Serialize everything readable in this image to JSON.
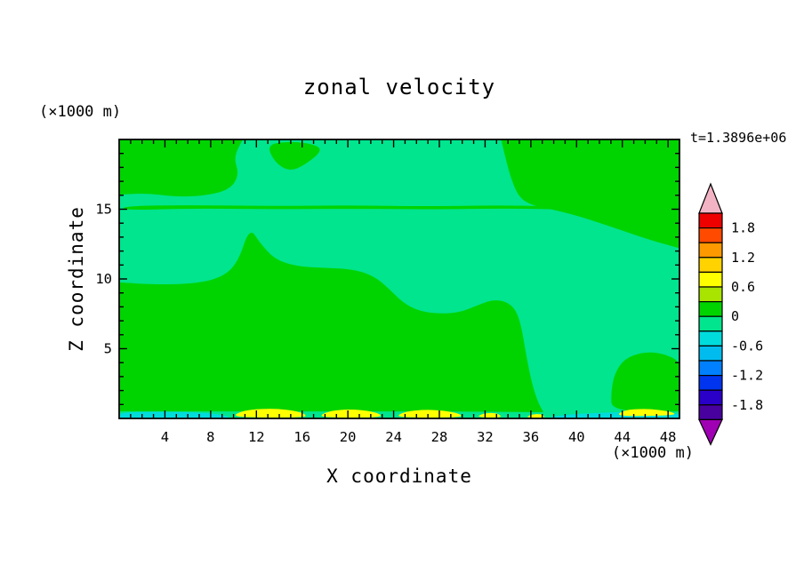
{
  "chart_data": {
    "type": "heatmap",
    "style": "filled-contour",
    "title": "zonal velocity",
    "time_label": "t=1.3896e+06",
    "x_axis_label": "X coordinate",
    "y_axis_label": "Z coordinate",
    "x_axis_unit": "(×1000 m)",
    "y_axis_unit": "(×1000 m)",
    "xlim": [
      0,
      49
    ],
    "ylim": [
      0,
      20
    ],
    "x_ticks": [
      4,
      8,
      12,
      16,
      20,
      24,
      28,
      32,
      36,
      40,
      44,
      48
    ],
    "y_ticks": [
      5,
      10,
      15
    ],
    "x_minor_tick_step": 1,
    "y_minor_tick_step": 1,
    "grid": false,
    "legend_position": "right-colorbar",
    "colorbar": {
      "tick_labels": [
        "1.8",
        "1.2",
        "0.6",
        "0",
        "-0.6",
        "-1.2",
        "-1.8"
      ],
      "tick_values": [
        1.8,
        1.2,
        0.6,
        0,
        -0.6,
        -1.2,
        -1.8
      ],
      "level_min": -2.1,
      "level_max": 2.1,
      "level_step": 0.3,
      "segment_colors_top_to_bottom": [
        "#EE0000",
        "#FF4A00",
        "#FF9900",
        "#FFD200",
        "#FFFF00",
        "#A8E400",
        "#00D400",
        "#00E58E",
        "#00DCDC",
        "#00BCEE",
        "#0080FF",
        "#0034EE",
        "#2A00C8",
        "#48009E"
      ],
      "over_arrow_color": "#F2B4C4",
      "under_arrow_color": "#A000B4"
    },
    "palette": {
      "green": "#00D400",
      "springgreen": "#00E58E",
      "yellow": "#FFFF00",
      "cyan": "#00DCDC"
    },
    "field": {
      "background": {
        "color": "springgreen",
        "value_range": [
          -0.3,
          0
        ]
      },
      "regions": [
        {
          "name": "upper-left-positive-cell",
          "color": "green",
          "value_range": [
            0,
            0.3
          ],
          "points": [
            [
              0,
              20
            ],
            [
              0,
              20
            ],
            [
              10.8,
              20
            ],
            [
              10.8,
              20
            ],
            [
              10.0,
              18.7
            ],
            [
              10.5,
              17.5
            ],
            [
              9.7,
              16.4
            ],
            [
              7.4,
              15.95
            ],
            [
              4.8,
              15.9
            ],
            [
              2.4,
              16.15
            ],
            [
              0,
              16.05
            ],
            [
              0,
              16.05
            ]
          ]
        },
        {
          "name": "upper-mid-positive-cell",
          "color": "green",
          "value_range": [
            0,
            0.3
          ],
          "points": [
            [
              12.9,
              19.6
            ],
            [
              14.6,
              19.85
            ],
            [
              16.6,
              19.75
            ],
            [
              17.9,
              19.3
            ],
            [
              16.3,
              18.2
            ],
            [
              14.9,
              17.7
            ],
            [
              13.6,
              18.35
            ]
          ]
        },
        {
          "name": "upper-right-positive-cell",
          "color": "green",
          "value_range": [
            0,
            0.3
          ],
          "points": [
            [
              33.4,
              20
            ],
            [
              33.4,
              20
            ],
            [
              49,
              20
            ],
            [
              49,
              20
            ],
            [
              49,
              12.2
            ],
            [
              49,
              12.2
            ],
            [
              46.2,
              12.85
            ],
            [
              43.2,
              13.7
            ],
            [
              40.2,
              14.5
            ],
            [
              37.8,
              15.0
            ],
            [
              36.2,
              15.25
            ],
            [
              35.0,
              15.8
            ],
            [
              34.3,
              17.1
            ],
            [
              33.8,
              18.6
            ]
          ]
        },
        {
          "name": "z15-positive-band",
          "color": "green",
          "value_range": [
            0,
            0.3
          ],
          "points": [
            [
              0.4,
              15.22
            ],
            [
              6,
              15.3
            ],
            [
              13,
              15.22
            ],
            [
              20,
              15.28
            ],
            [
              27,
              15.2
            ],
            [
              33,
              15.28
            ],
            [
              38,
              15.22
            ],
            [
              43,
              15.1
            ],
            [
              48.6,
              14.98
            ],
            [
              48.6,
              14.82
            ],
            [
              43,
              14.9
            ],
            [
              38,
              15.0
            ],
            [
              33,
              15.06
            ],
            [
              27,
              14.98
            ],
            [
              20,
              15.04
            ],
            [
              13,
              15.0
            ],
            [
              6,
              15.06
            ],
            [
              0.4,
              14.92
            ]
          ]
        },
        {
          "name": "lower-main-positive-cell",
          "color": "green",
          "value_range": [
            0,
            0.3
          ],
          "points": [
            [
              0,
              9.75
            ],
            [
              0,
              9.75
            ],
            [
              3,
              9.6
            ],
            [
              6.5,
              9.65
            ],
            [
              9,
              10.1
            ],
            [
              10.4,
              11.2
            ],
            [
              11.4,
              13.7
            ],
            [
              12.3,
              12.6
            ],
            [
              13.6,
              11.4
            ],
            [
              15.5,
              10.9
            ],
            [
              18,
              10.8
            ],
            [
              20.5,
              10.7
            ],
            [
              22.3,
              10.2
            ],
            [
              23.6,
              9.3
            ],
            [
              24.8,
              8.3
            ],
            [
              26.2,
              7.7
            ],
            [
              28,
              7.5
            ],
            [
              29.8,
              7.6
            ],
            [
              31.3,
              8.1
            ],
            [
              32.6,
              8.5
            ],
            [
              33.8,
              8.4
            ],
            [
              34.7,
              7.8
            ],
            [
              35.2,
              6.5
            ],
            [
              35.6,
              4.5
            ],
            [
              36.1,
              2.5
            ],
            [
              36.6,
              1.2
            ],
            [
              37.1,
              0.45
            ],
            [
              37.1,
              0.45
            ],
            [
              28,
              0.5
            ],
            [
              18,
              0.5
            ],
            [
              8,
              0.5
            ],
            [
              0,
              0.5
            ],
            [
              0,
              0.5
            ]
          ]
        },
        {
          "name": "lower-right-positive-cell",
          "color": "green",
          "value_range": [
            0,
            0.3
          ],
          "points": [
            [
              43.1,
              0.5
            ],
            [
              43.0,
              1.8
            ],
            [
              43.3,
              3.2
            ],
            [
              44.2,
              4.3
            ],
            [
              45.8,
              4.75
            ],
            [
              47.3,
              4.7
            ],
            [
              48.6,
              4.3
            ],
            [
              49,
              3.9
            ],
            [
              49,
              3.9
            ],
            [
              49,
              0.5
            ],
            [
              49,
              0.5
            ]
          ]
        },
        {
          "name": "bottom-left-negative-strip",
          "color": "cyan",
          "value_range": [
            -0.6,
            -0.3
          ],
          "points": [
            [
              0,
              0.42
            ],
            [
              3,
              0.5
            ],
            [
              6,
              0.46
            ],
            [
              8.2,
              0.36
            ],
            [
              9.6,
              0.14
            ],
            [
              9.6,
              0
            ],
            [
              9.6,
              0
            ],
            [
              0,
              0
            ],
            [
              0,
              0
            ]
          ]
        },
        {
          "name": "bottom-right-negative-strip",
          "color": "cyan",
          "value_range": [
            -0.6,
            -0.3
          ],
          "points": [
            [
              37.7,
              0.13
            ],
            [
              40,
              0.33
            ],
            [
              43,
              0.44
            ],
            [
              46,
              0.5
            ],
            [
              49,
              0.4
            ],
            [
              49,
              0
            ],
            [
              49,
              0
            ],
            [
              37.7,
              0
            ],
            [
              37.7,
              0
            ]
          ]
        },
        {
          "name": "bottom-yellow-patch-1",
          "color": "yellow",
          "value_range": [
            0.6,
            0.9
          ],
          "points": [
            [
              9.9,
              0.12
            ],
            [
              10.6,
              0.5
            ],
            [
              12,
              0.68
            ],
            [
              13.8,
              0.7
            ],
            [
              15.4,
              0.55
            ],
            [
              16.3,
              0.3
            ],
            [
              16.3,
              0.08
            ],
            [
              13,
              0.06
            ]
          ]
        },
        {
          "name": "bottom-yellow-patch-2",
          "color": "yellow",
          "value_range": [
            0.6,
            0.9
          ],
          "points": [
            [
              17.4,
              0.1
            ],
            [
              18.2,
              0.5
            ],
            [
              19.8,
              0.66
            ],
            [
              21.4,
              0.6
            ],
            [
              22.8,
              0.35
            ],
            [
              22.9,
              0.08
            ],
            [
              20,
              0.06
            ]
          ]
        },
        {
          "name": "bottom-yellow-patch-3",
          "color": "yellow",
          "value_range": [
            0.6,
            0.9
          ],
          "points": [
            [
              24.1,
              0.1
            ],
            [
              25,
              0.5
            ],
            [
              26.8,
              0.64
            ],
            [
              28.6,
              0.55
            ],
            [
              29.9,
              0.3
            ],
            [
              29.9,
              0.08
            ],
            [
              27,
              0.06
            ]
          ]
        },
        {
          "name": "bottom-yellow-patch-4",
          "color": "yellow",
          "value_range": [
            0.6,
            0.9
          ],
          "points": [
            [
              31.2,
              0.08
            ],
            [
              31.9,
              0.38
            ],
            [
              32.9,
              0.4
            ],
            [
              33.4,
              0.2
            ],
            [
              33.3,
              0.06
            ]
          ]
        },
        {
          "name": "bottom-yellow-patch-5",
          "color": "yellow",
          "value_range": [
            0.6,
            0.9
          ],
          "points": [
            [
              35.5,
              0.07
            ],
            [
              36.1,
              0.3
            ],
            [
              36.9,
              0.32
            ],
            [
              37.2,
              0.15
            ],
            [
              37.1,
              0.05
            ]
          ]
        },
        {
          "name": "bottom-right-yellow-patch",
          "color": "yellow",
          "value_range": [
            0.6,
            0.9
          ],
          "points": [
            [
              43.4,
              0.2
            ],
            [
              44.2,
              0.6
            ],
            [
              45.8,
              0.7
            ],
            [
              47.2,
              0.62
            ],
            [
              48.4,
              0.45
            ],
            [
              48.7,
              0.25
            ],
            [
              46,
              0.16
            ]
          ]
        }
      ]
    }
  }
}
